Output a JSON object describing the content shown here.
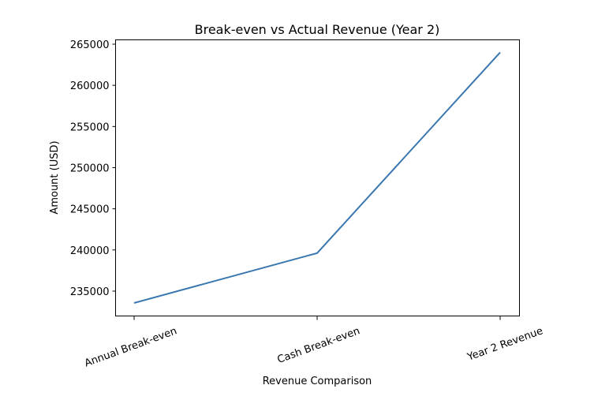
{
  "chart_data": {
    "type": "line",
    "title": "Break-even vs Actual Revenue (Year 2)",
    "xlabel": "Revenue Comparison",
    "ylabel": "Amount (USD)",
    "categories": [
      "Annual Break-even",
      "Cash Break-even",
      "Year 2 Revenue"
    ],
    "series": [
      {
        "name": "Amount",
        "color": "#3a77b0",
        "values": [
          233560,
          239620,
          264000
        ]
      }
    ],
    "yticks": [
      235000,
      240000,
      245000,
      250000,
      255000,
      260000,
      265000
    ],
    "ytick_labels": [
      "235000",
      "240000",
      "245000",
      "250000",
      "255000",
      "260000",
      "265000"
    ],
    "ylim": [
      232000,
      265600
    ],
    "grid": false,
    "legend": null,
    "xtick_rotation": 20
  }
}
